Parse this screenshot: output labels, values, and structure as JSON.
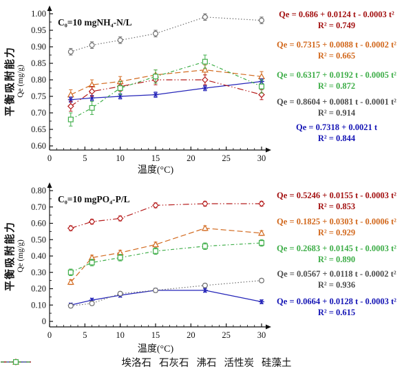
{
  "legend": [
    {
      "id": "halloysite",
      "label": "埃洛石",
      "marker": "triangle",
      "dash": "dashed",
      "color": "#D2691E"
    },
    {
      "id": "limestone",
      "label": "石灰石",
      "marker": "asterisk",
      "dash": "solid",
      "color": "#2323B8"
    },
    {
      "id": "zeolite",
      "label": "沸石",
      "marker": "circle",
      "dash": "dotted",
      "color": "#6E6E6E"
    },
    {
      "id": "activated-carbon",
      "label": "活性炭",
      "marker": "diamond",
      "dash": "dashdotdot",
      "color": "#B51A1A"
    },
    {
      "id": "diatomite",
      "label": "硅藻土",
      "marker": "square",
      "dash": "dashdot",
      "color": "#3FAE49"
    }
  ],
  "chart_data": [
    {
      "type": "line",
      "title": "C₀=10 mgNH₄-N/L",
      "xlabel": "温度(°C)",
      "ylabel_cn": "平衡吸附能力",
      "ylabel_en": "Qe (mg/g)",
      "x": [
        3,
        6,
        10,
        15,
        22,
        30
      ],
      "xlim": [
        0,
        30
      ],
      "xticks": [
        0,
        5,
        10,
        15,
        20,
        25,
        30
      ],
      "ylim": [
        0.6,
        1.0
      ],
      "yticks": [
        "0.60",
        "0.65",
        "0.70",
        "0.75",
        "0.80",
        "0.85",
        "0.90",
        "0.95",
        "1.00"
      ],
      "grid": false,
      "series": [
        {
          "name": "埃洛石",
          "id": "halloysite",
          "values": [
            0.755,
            0.785,
            0.795,
            0.815,
            0.83,
            0.81
          ],
          "err": 0.015
        },
        {
          "name": "石灰石",
          "id": "limestone",
          "values": [
            0.74,
            0.745,
            0.75,
            0.755,
            0.775,
            0.795
          ],
          "err": 0.008
        },
        {
          "name": "沸石",
          "id": "zeolite",
          "values": [
            0.885,
            0.905,
            0.92,
            0.94,
            0.99,
            0.98
          ],
          "err": 0.01
        },
        {
          "name": "活性炭",
          "id": "activated-carbon",
          "values": [
            0.72,
            0.765,
            0.78,
            0.8,
            0.8,
            0.755
          ],
          "err": 0.015
        },
        {
          "name": "硅藻土",
          "id": "diatomite",
          "values": [
            0.68,
            0.715,
            0.775,
            0.81,
            0.855,
            0.78
          ],
          "err": 0.02
        }
      ],
      "equations": [
        {
          "series": "activated-carbon",
          "text": "Qe = 0.686 + 0.0124 t - 0.0003 t²",
          "r2": "R² = 0.749",
          "color": "#A31212"
        },
        {
          "series": "halloysite",
          "text": "Qe = 0.7315 + 0.0088 t - 0.0002 t²",
          "r2": "R² = 0.665",
          "color": "#D2691E"
        },
        {
          "series": "diatomite",
          "text": "Qe = 0.6317 + 0.0192 t - 0.0005 t²",
          "r2": "R² = 0.872",
          "color": "#3FAE49"
        },
        {
          "series": "zeolite",
          "text": "Qe = 0.8604 + 0.0081 t - 0.0001 t²",
          "r2": "R² = 0.914",
          "color": "#4D4D4D"
        },
        {
          "series": "limestone",
          "text": "Qe = 0.7318 + 0.0021 t",
          "r2": "R² = 0.844",
          "color": "#1515B5"
        }
      ]
    },
    {
      "type": "line",
      "title": "C₀=10 mgPO₄-P/L",
      "xlabel": "温度(°C)",
      "ylabel_cn": "平衡吸附能力",
      "ylabel_en": "Qe (mg/g)",
      "x": [
        3,
        6,
        10,
        15,
        22,
        30
      ],
      "xlim": [
        0,
        30
      ],
      "xticks": [
        0,
        5,
        10,
        15,
        20,
        25,
        30
      ],
      "ylim": [
        0,
        0.8
      ],
      "yticks": [
        "0",
        "0.10",
        "0.20",
        "0.30",
        "0.40",
        "0.50",
        "0.60",
        "0.70",
        "0.80"
      ],
      "grid": false,
      "series": [
        {
          "name": "埃洛石",
          "id": "halloysite",
          "values": [
            0.24,
            0.39,
            0.42,
            0.47,
            0.57,
            0.54
          ],
          "err": 0.015
        },
        {
          "name": "石灰石",
          "id": "limestone",
          "values": [
            0.1,
            0.13,
            0.16,
            0.19,
            0.19,
            0.12
          ],
          "err": 0.012
        },
        {
          "name": "沸石",
          "id": "zeolite",
          "values": [
            0.095,
            0.11,
            0.17,
            0.19,
            0.22,
            0.25
          ],
          "err": 0.012
        },
        {
          "name": "活性炭",
          "id": "activated-carbon",
          "values": [
            0.57,
            0.61,
            0.63,
            0.71,
            0.72,
            0.72
          ],
          "err": 0.015
        },
        {
          "name": "硅藻土",
          "id": "diatomite",
          "values": [
            0.3,
            0.36,
            0.39,
            0.43,
            0.46,
            0.48
          ],
          "err": 0.02
        }
      ],
      "equations": [
        {
          "series": "activated-carbon",
          "text": "Qe = 0.5246 + 0.0155 t - 0.0003 t²",
          "r2": "R² = 0.853",
          "color": "#A31212"
        },
        {
          "series": "halloysite",
          "text": "Qe = 0.1825 + 0.0303 t - 0.0006 t²",
          "r2": "R² = 0.929",
          "color": "#D2691E"
        },
        {
          "series": "diatomite",
          "text": "Qe = 0.2683 + 0.0145 t - 0.0003 t²",
          "r2": "R² = 0.890",
          "color": "#3FAE49"
        },
        {
          "series": "zeolite",
          "text": "Qe = 0.0567 + 0.0118 t - 0.0002 t²",
          "r2": "R² = 0.936",
          "color": "#4D4D4D"
        },
        {
          "series": "limestone",
          "text": "Qe = 0.0664 + 0.0128 t - 0.0003 t²",
          "r2": "R² = 0.615",
          "color": "#1515B5"
        }
      ]
    }
  ]
}
